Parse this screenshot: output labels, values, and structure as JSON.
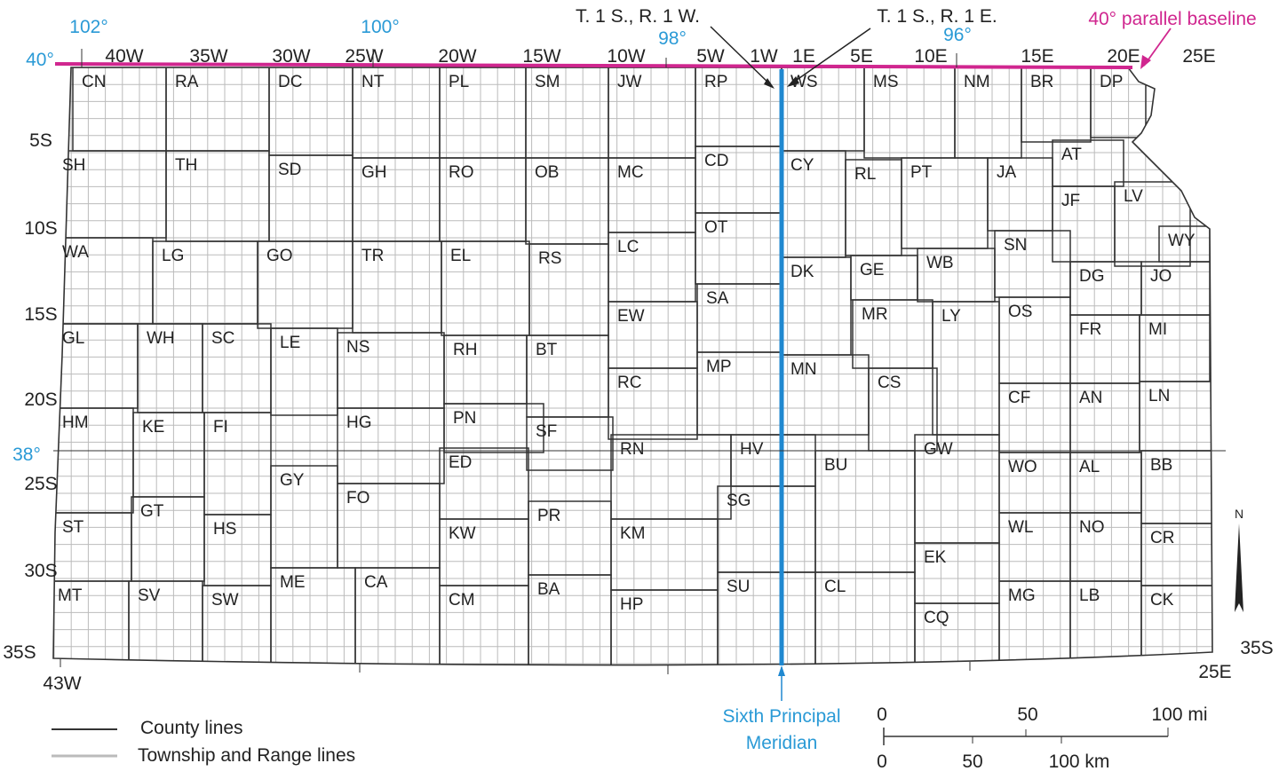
{
  "annotations": {
    "t1s_r1w": "T. 1 S., R. 1 W.",
    "t1s_r1e": "T. 1 S., R. 1 E.",
    "baseline": "40° parallel baseline",
    "meridian_line1": "Sixth Principal",
    "meridian_line2": "Meridian"
  },
  "latitudes": {
    "lat40": "40°",
    "lat38": "38°"
  },
  "longitudes": {
    "lon102": "102°",
    "lon100": "100°",
    "lon98": "98°",
    "lon96": "96°"
  },
  "ranges": [
    "40W",
    "35W",
    "30W",
    "25W",
    "20W",
    "15W",
    "10W",
    "5W",
    "1W",
    "1E",
    "5E",
    "10E",
    "15E",
    "20E",
    "25E"
  ],
  "range_bottom": {
    "west": "43W",
    "east": "25E"
  },
  "townships": [
    "5S",
    "10S",
    "15S",
    "20S",
    "25S",
    "30S",
    "35S"
  ],
  "township_right": "35S",
  "counties": [
    "CN",
    "RA",
    "DC",
    "NT",
    "PL",
    "SM",
    "JW",
    "RP",
    "WS",
    "MS",
    "NM",
    "BR",
    "DP",
    "SH",
    "TH",
    "SD",
    "GH",
    "RO",
    "OB",
    "MC",
    "CD",
    "CY",
    "RL",
    "PT",
    "JA",
    "AT",
    "JF",
    "LV",
    "WA",
    "LG",
    "GO",
    "TR",
    "EL",
    "RS",
    "LC",
    "OT",
    "DK",
    "GE",
    "WB",
    "SN",
    "DG",
    "JO",
    "WY",
    "GL",
    "WH",
    "SC",
    "LE",
    "NS",
    "RH",
    "BT",
    "EW",
    "SA",
    "MR",
    "LY",
    "OS",
    "FR",
    "MI",
    "HM",
    "KE",
    "FI",
    "HG",
    "PN",
    "SF",
    "RC",
    "MP",
    "MN",
    "CS",
    "CF",
    "AN",
    "LN",
    "GY",
    "FO",
    "ED",
    "RN",
    "HV",
    "BU",
    "GW",
    "WO",
    "AL",
    "BB",
    "ST",
    "GT",
    "HS",
    "KW",
    "PR",
    "KM",
    "SG",
    "EK",
    "WL",
    "NO",
    "CR",
    "MT",
    "SV",
    "SW",
    "ME",
    "CA",
    "CM",
    "BA",
    "HP",
    "SU",
    "CL",
    "CQ",
    "MG",
    "LB",
    "CK"
  ],
  "legend": {
    "county_lines": "County lines",
    "township_range_lines": "Township and Range lines"
  },
  "scale": {
    "mi_labels": [
      "0",
      "50",
      "100 mi"
    ],
    "km_labels": [
      "0",
      "50",
      "100 km"
    ]
  },
  "north_label": "N",
  "colors": {
    "baseline": "#d0268f",
    "meridian": "#1f88d0",
    "county_line": "#333333",
    "grid_line": "#bbbbbb"
  }
}
